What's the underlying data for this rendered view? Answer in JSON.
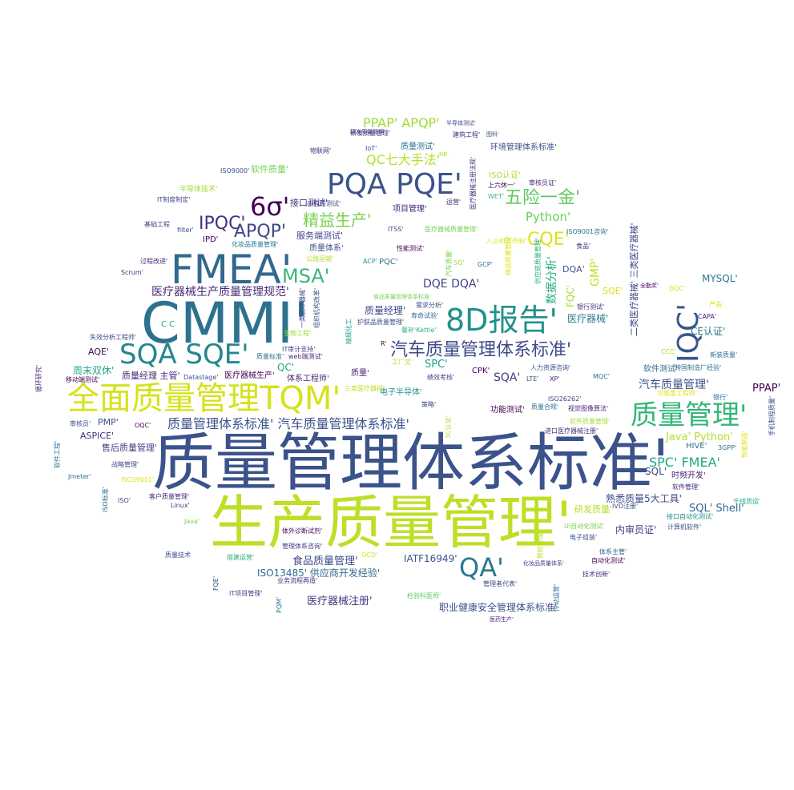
{
  "words": [
    {
      "text": "质量管理体系标准'",
      "color": "#3b528b",
      "size": 78
    },
    {
      "text": "生产质量管理'",
      "color": "#bddf26",
      "size": 72
    },
    {
      "text": "CMMI'",
      "color": "#2c728e",
      "size": 70
    },
    {
      "text": "FMEA'",
      "color": "#31688e",
      "size": 50
    },
    {
      "text": "全面质量管理TQM'",
      "color": "#d5e21a",
      "size": 40
    },
    {
      "text": "8D报告'",
      "color": "#21918c",
      "size": 38
    },
    {
      "text": "PQA PQE'",
      "color": "#3b528b",
      "size": 36
    },
    {
      "text": "SQA SQE'",
      "color": "#25858e",
      "size": 34
    },
    {
      "text": "质量管理'",
      "color": "#35b779",
      "size": 34
    },
    {
      "text": "QA'",
      "color": "#2a788e",
      "size": 32
    },
    {
      "text": "IQC'",
      "color": "#39568c",
      "size": 36
    },
    {
      "text": "6σ'",
      "color": "#440154",
      "size": 32
    },
    {
      "text": "汽车质量管理体系标准'",
      "color": "#3e4a89",
      "size": 22
    },
    {
      "text": "IPQC'",
      "color": "#46327e",
      "size": 22
    },
    {
      "text": "APQP'",
      "color": "#404688",
      "size": 22
    },
    {
      "text": "MSA'",
      "color": "#35b779",
      "size": 24
    },
    {
      "text": "精益生产'",
      "color": "#7ad151",
      "size": 20
    },
    {
      "text": "五险一金'",
      "color": "#5ec962",
      "size": 22
    },
    {
      "text": "CQE'",
      "color": "#dde318",
      "size": 22
    },
    {
      "text": "PPAP' APQP'",
      "color": "#a0da39",
      "size": 16
    },
    {
      "text": "QC七大手法'",
      "color": "#b5de2b",
      "size": 16
    },
    {
      "text": "Python'",
      "color": "#6ccd5a",
      "size": 15
    },
    {
      "text": "DQE DQA'",
      "color": "#414487",
      "size": 14
    },
    {
      "text": "质量管理体系标准' 汽车质量管理体系标准'",
      "color": "#3b528b",
      "size": 16
    },
    {
      "text": "医疗器械生产质量管理规范'",
      "color": "#482878",
      "size": 14
    },
    {
      "text": "SPC' FMEA'",
      "color": "#22a884",
      "size": 16
    },
    {
      "text": "熟悉质量5大工具'",
      "color": "#3e4989",
      "size": 12
    },
    {
      "text": "汽车质量管理'",
      "color": "#3b528b",
      "size": 14
    },
    {
      "text": "Java' Python'",
      "color": "#b5de2b",
      "size": 13
    },
    {
      "text": "SQL' Shell'",
      "color": "#31688e",
      "size": 13
    },
    {
      "text": "MYSQL'",
      "color": "#2a788e",
      "size": 12
    },
    {
      "text": "CE认证'",
      "color": "#2d708e",
      "size": 12
    },
    {
      "text": "PPAP'",
      "color": "#440154",
      "size": 13
    },
    {
      "text": "医疗器械注册'",
      "color": "#46337e",
      "size": 13
    },
    {
      "text": "职业健康安全管理体系标准'",
      "color": "#3b528b",
      "size": 12
    },
    {
      "text": "ISO13485' 供应商开发经验'",
      "color": "#31688e",
      "size": 12
    },
    {
      "text": "食品质量管理'",
      "color": "#3e4a89",
      "size": 13
    },
    {
      "text": "IATF16949'",
      "color": "#3b528b",
      "size": 12
    },
    {
      "text": "质量经理 主管'",
      "color": "#482878",
      "size": 11
    },
    {
      "text": "周末双休'",
      "color": "#22a884",
      "size": 12
    },
    {
      "text": "AQE'",
      "color": "#440154",
      "size": 11
    },
    {
      "text": "ASPICE'",
      "color": "#472d7b",
      "size": 11
    },
    {
      "text": "售后质量管理'",
      "color": "#433e85",
      "size": 11
    },
    {
      "text": "PMP'",
      "color": "#3b528b",
      "size": 11
    },
    {
      "text": "质量经理'",
      "color": "#414487",
      "size": 12
    },
    {
      "text": "医疗器械'",
      "color": "#2a788e",
      "size": 12
    },
    {
      "text": "SQA'",
      "color": "#443983",
      "size": 14
    },
    {
      "text": "SPC'",
      "color": "#1fa188",
      "size": 13
    },
    {
      "text": "QC'",
      "color": "#22a884",
      "size": 12
    },
    {
      "text": "数据分析'",
      "color": "#27ad81",
      "size": 14
    },
    {
      "text": "GMP'",
      "color": "#bddf26",
      "size": 14
    },
    {
      "text": "FQC'",
      "color": "#aadc32",
      "size": 12
    },
    {
      "text": "DQA'",
      "color": "#3b528b",
      "size": 11
    },
    {
      "text": "SQE'",
      "color": "#d8e219",
      "size": 11
    },
    {
      "text": "二类医疗器械' 三类医疗器械'",
      "color": "#3e4989",
      "size": 11
    },
    {
      "text": "软件测试'",
      "color": "#2d708e",
      "size": 10
    },
    {
      "text": "内审员证'",
      "color": "#443983",
      "size": 12
    },
    {
      "text": "HIVE'",
      "color": "#2c728e",
      "size": 10
    },
    {
      "text": "SQL'",
      "color": "#3e4989",
      "size": 12
    },
    {
      "text": "时频开发'",
      "color": "#482475",
      "size": 10
    },
    {
      "text": "研发质量'",
      "color": "#b5de2b",
      "size": 11
    },
    {
      "text": "功能测试'",
      "color": "#440154",
      "size": 10
    },
    {
      "text": "电子半导体'",
      "color": "#21918c",
      "size": 10
    },
    {
      "text": "项目管理'",
      "color": "#482878",
      "size": 10
    },
    {
      "text": "接口测试'",
      "color": "#46327e",
      "size": 11
    },
    {
      "text": "服务端测试'",
      "color": "#404688",
      "size": 11
    },
    {
      "text": "质量体系'",
      "color": "#3b528b",
      "size": 10
    },
    {
      "text": "环境管理体系标准'",
      "color": "#3b528b",
      "size": 10
    },
    {
      "text": "软件质量'",
      "color": "#7ad151",
      "size": 11
    },
    {
      "text": "质量测试'",
      "color": "#2c728e",
      "size": 10
    },
    {
      "text": "ISO认证'",
      "color": "#aadc32",
      "size": 10
    },
    {
      "text": "体系工程师'",
      "color": "#482878",
      "size": 10
    },
    {
      "text": "医疗器械生产'",
      "color": "#440154",
      "size": 10
    },
    {
      "text": "质量'",
      "color": "#482878",
      "size": 10
    },
    {
      "text": "PQC'",
      "color": "#2d708e",
      "size": 10
    },
    {
      "text": "CPK'",
      "color": "#440154",
      "size": 10
    },
    {
      "text": "半导体技术'",
      "color": "#a0da39",
      "size": 9
    },
    {
      "text": "基础工程",
      "color": "#3e4a89",
      "size": 8
    },
    {
      "text": "过程改进'",
      "color": "#482878",
      "size": 8
    },
    {
      "text": "Scrum'",
      "color": "#46337e",
      "size": 8
    },
    {
      "text": "失效分析工程师'",
      "color": "#404688",
      "size": 8
    },
    {
      "text": "移动端测试'",
      "color": "#440154",
      "size": 8
    },
    {
      "text": "Datastage'",
      "color": "#3b528b",
      "size": 8
    },
    {
      "text": "IPD'",
      "color": "#440154",
      "size": 10
    },
    {
      "text": "Linux'",
      "color": "#46337e",
      "size": 8
    },
    {
      "text": "客户质量管理'",
      "color": "#482878",
      "size": 8
    },
    {
      "text": "战略管理'",
      "color": "#3e4a89",
      "size": 8
    },
    {
      "text": "Jmeter'",
      "color": "#2c728e",
      "size": 8
    },
    {
      "text": "ISO39001'",
      "color": "#dde318",
      "size": 8
    },
    {
      "text": "质量技术",
      "color": "#3e4989",
      "size": 8
    },
    {
      "text": "IT项目管理'",
      "color": "#414487",
      "size": 8
    },
    {
      "text": "业务流程再造'",
      "color": "#482878",
      "size": 8
    },
    {
      "text": "管理体系咨询'",
      "color": "#443983",
      "size": 8
    },
    {
      "text": "体外诊断试剂'",
      "color": "#440154",
      "size": 8
    },
    {
      "text": "搭建运营'",
      "color": "#27ad81",
      "size": 8
    },
    {
      "text": "技术创新'",
      "color": "#46337e",
      "size": 8
    },
    {
      "text": "计算机软件'",
      "color": "#3b528b",
      "size": 8
    },
    {
      "text": "管理者代表'",
      "color": "#3e4a89",
      "size": 8
    },
    {
      "text": "医药生产'",
      "color": "#482878",
      "size": 7
    },
    {
      "text": "体系主管'",
      "color": "#31688e",
      "size": 8
    },
    {
      "text": "电子组装'",
      "color": "#3b528b",
      "size": 8
    },
    {
      "text": "化妆品质量体系'",
      "color": "#433e85",
      "size": 7
    },
    {
      "text": "进口医疗器械注册'",
      "color": "#46327e",
      "size": 8
    },
    {
      "text": "软件质量管理'",
      "color": "#aadc32",
      "size": 8
    },
    {
      "text": "人力资源咨询'",
      "color": "#3b528b",
      "size": 8
    },
    {
      "text": "ISO26262'",
      "color": "#3e4989",
      "size": 8
    },
    {
      "text": "绩效考核'",
      "color": "#404688",
      "size": 8
    },
    {
      "text": "视觉图像算法'",
      "color": "#482878",
      "size": 8
    },
    {
      "text": "可靠度工程师'",
      "color": "#dde318",
      "size": 8
    },
    {
      "text": "跨国制造厂经验'",
      "color": "#2c728e",
      "size": 8
    },
    {
      "text": "银行测试'",
      "color": "#46327e",
      "size": 8
    },
    {
      "text": "ISO9001咨询'",
      "color": "#2d708e",
      "size": 8
    },
    {
      "text": "审核员证'",
      "color": "#482878",
      "size": 8
    },
    {
      "text": "上六休一'",
      "color": "#440154",
      "size": 8
    },
    {
      "text": "研发质量管理'",
      "color": "#3b528b",
      "size": 8
    },
    {
      "text": "建筑工程'",
      "color": "#482878",
      "size": 8
    },
    {
      "text": "物联网'",
      "color": "#46337e",
      "size": 8
    },
    {
      "text": "ISO9000'",
      "color": "#3b528b",
      "size": 8
    },
    {
      "text": "IT制度制定'",
      "color": "#404688",
      "size": 8
    },
    {
      "text": "小程序测试'",
      "color": "#3e4a89",
      "size": 8
    },
    {
      "text": "性能测试'",
      "color": "#440154",
      "size": 8
    },
    {
      "text": "化妆品质量管理'",
      "color": "#2a788e",
      "size": 8
    },
    {
      "text": "公路运输'",
      "color": "#b5de2b",
      "size": 8
    },
    {
      "text": "食品质量管理体系标准'",
      "color": "#7ad151",
      "size": 7
    },
    {
      "text": "需求分析'",
      "color": "#3b528b",
      "size": 8
    },
    {
      "text": "寿命试验'",
      "color": "#31688e",
      "size": 8
    },
    {
      "text": "护肤品质量管理'",
      "color": "#3e4a89",
      "size": 8
    },
    {
      "text": "餐补'Kettle'",
      "color": "#27ad81",
      "size": 8
    },
    {
      "text": "IT审计支持'",
      "color": "#433e85",
      "size": 8
    },
    {
      "text": "web端测试'",
      "color": "#482878",
      "size": 8
    },
    {
      "text": "质量标准'",
      "color": "#2c728e",
      "size": 8
    },
    {
      "text": "生物工程'",
      "color": "#a0da39",
      "size": 8
    },
    {
      "text": "精细化工",
      "color": "#1fa188",
      "size": 8
    },
    {
      "text": "医疗器械质量管理'",
      "color": "#7ad151",
      "size": 8
    },
    {
      "text": "ACP'",
      "color": "#21918c",
      "size": 8
    },
    {
      "text": "GCP'",
      "color": "#2c728e",
      "size": 8
    },
    {
      "text": "5G'",
      "color": "#a0da39",
      "size": 8
    },
    {
      "text": "LTE'",
      "color": "#3b528b",
      "size": 8
    },
    {
      "text": "XP'",
      "color": "#482878",
      "size": 8
    },
    {
      "text": "MQC'",
      "color": "#2c728e",
      "size": 8
    },
    {
      "text": "CCC'",
      "color": "#aadc32",
      "size": 8
    },
    {
      "text": "3GPP'",
      "color": "#2d708e",
      "size": 8
    },
    {
      "text": "千线货运'",
      "color": "#22a884",
      "size": 8
    },
    {
      "text": "接口自动化测试'",
      "color": "#21918c",
      "size": 8
    },
    {
      "text": "IVD注册'",
      "color": "#3b528b",
      "size": 8
    },
    {
      "text": "UI自动化测试'",
      "color": "#7ad151",
      "size": 8
    },
    {
      "text": "自动化测试'",
      "color": "#440154",
      "size": 8
    },
    {
      "text": "检验科医师'",
      "color": "#5ec962",
      "size": 8
    },
    {
      "text": "三类医疗器械'",
      "color": "#bddf26",
      "size": 8
    },
    {
      "text": "工厂奖'",
      "color": "#bddf26",
      "size": 8
    },
    {
      "text": "OQC'",
      "color": "#440154",
      "size": 8
    },
    {
      "text": "审核员'",
      "color": "#3b528b",
      "size": 8
    },
    {
      "text": "ISO'",
      "color": "#3e4989",
      "size": 8
    },
    {
      "text": "Java'",
      "color": "#7ad151",
      "size": 8
    },
    {
      "text": "OCD'",
      "color": "#dde318",
      "size": 8
    },
    {
      "text": "全勤奖'",
      "color": "#440154",
      "size": 7
    },
    {
      "text": "DQC'",
      "color": "#dde318",
      "size": 8
    },
    {
      "text": "产品'",
      "color": "#dde318",
      "size": 8
    },
    {
      "text": "CAPA'",
      "color": "#482878",
      "size": 8
    },
    {
      "text": "新装质量'",
      "color": "#2d708e",
      "size": 8
    },
    {
      "text": "银行'",
      "color": "#31688e",
      "size": 8
    },
    {
      "text": "软件管理'",
      "color": "#482878",
      "size": 8
    },
    {
      "text": "食品'",
      "color": "#46337e",
      "size": 8
    },
    {
      "text": "质量合规'",
      "color": "#2c728e",
      "size": 8
    },
    {
      "text": "策略'",
      "color": "#3e4a89",
      "size": 8
    },
    {
      "text": "WET'",
      "color": "#35b779",
      "size": 8
    },
    {
      "text": "运营'",
      "color": "#46327e",
      "size": 8
    },
    {
      "text": "八小时工作制'",
      "color": "#dde318",
      "size": 8
    },
    {
      "text": "半导体测试'",
      "color": "#3e4989",
      "size": 7
    },
    {
      "text": "图科'",
      "color": "#3b528b",
      "size": 7
    },
    {
      "text": "研发质量管理'",
      "color": "#482878",
      "size": 7
    },
    {
      "text": "IoT'",
      "color": "#3e4a89",
      "size": 8
    },
    {
      "text": "NB'",
      "color": "#aadc32",
      "size": 7
    },
    {
      "text": "ITSS'",
      "color": "#3e4989",
      "size": 8
    },
    {
      "text": "filter'",
      "color": "#3b528b",
      "size": 8
    },
    {
      "text": "C C",
      "color": "#22a884",
      "size": 10
    },
    {
      "text": "R'",
      "color": "#440154",
      "size": 8
    },
    {
      "text": "软件工程'",
      "color": "#2c728e",
      "size": 8
    },
    {
      "text": "ISO标准'",
      "color": "#31688e",
      "size": 8
    },
    {
      "text": "FQE'",
      "color": "#3b528b",
      "size": 8
    },
    {
      "text": "PQM'",
      "color": "#2a788e",
      "size": 8
    },
    {
      "text": "循环研究'",
      "color": "#482878",
      "size": 8
    },
    {
      "text": "手机制程质量'",
      "color": "#3e4a89",
      "size": 8
    },
    {
      "text": "一类医疗器械'",
      "color": "#3e4989",
      "size": 8
    },
    {
      "text": "组织机构改革'",
      "color": "#3b528b",
      "size": 8
    },
    {
      "text": "供应链质量管理'",
      "color": "#27ad81",
      "size": 8
    },
    {
      "text": "医疗器械注册法规'",
      "color": "#46337e",
      "size": 8
    },
    {
      "text": "精益质量管理'",
      "color": "#dde318",
      "size": 8
    },
    {
      "text": "汽车质量'",
      "color": "#7ad151",
      "size": 8
    },
    {
      "text": "3C认证'",
      "color": "#aadc32",
      "size": 8
    },
    {
      "text": "传动运营'",
      "color": "#2d708e",
      "size": 8
    },
    {
      "text": "质检经理'",
      "color": "#b5de2b",
      "size": 8
    },
    {
      "text": "智能制造'",
      "color": "#dde318",
      "size": 8
    }
  ]
}
